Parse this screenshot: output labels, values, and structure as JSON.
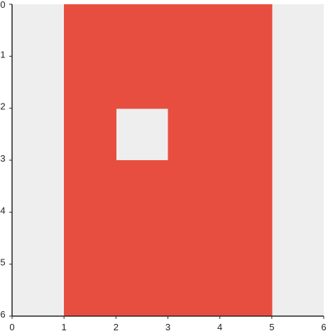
{
  "grid": {
    "cols": 6,
    "rows": 6,
    "x_ticks": [
      "0",
      "1",
      "2",
      "3",
      "4",
      "5",
      "6"
    ],
    "y_ticks": [
      "0",
      "1",
      "2",
      "3",
      "4",
      "5",
      "6"
    ],
    "background_color": "#eeeeee",
    "axis_color": "#222222",
    "cells": [
      {
        "col": 1,
        "row": 0,
        "color": "#e84e3f"
      },
      {
        "col": 2,
        "row": 0,
        "color": "#e84e3f"
      },
      {
        "col": 3,
        "row": 0,
        "color": "#e84e3f"
      },
      {
        "col": 4,
        "row": 0,
        "color": "#e84e3f"
      },
      {
        "col": 1,
        "row": 1,
        "color": "#e84e3f"
      },
      {
        "col": 2,
        "row": 1,
        "color": "#e84e3f"
      },
      {
        "col": 3,
        "row": 1,
        "color": "#e84e3f"
      },
      {
        "col": 4,
        "row": 1,
        "color": "#e84e3f"
      },
      {
        "col": 1,
        "row": 2,
        "color": "#e84e3f"
      },
      {
        "col": 3,
        "row": 2,
        "color": "#e84e3f"
      },
      {
        "col": 4,
        "row": 2,
        "color": "#e84e3f"
      },
      {
        "col": 1,
        "row": 3,
        "color": "#e84e3f"
      },
      {
        "col": 2,
        "row": 3,
        "color": "#e84e3f"
      },
      {
        "col": 3,
        "row": 3,
        "color": "#e84e3f"
      },
      {
        "col": 4,
        "row": 3,
        "color": "#e84e3f"
      },
      {
        "col": 1,
        "row": 4,
        "color": "#e84e3f"
      },
      {
        "col": 2,
        "row": 4,
        "color": "#e84e3f"
      },
      {
        "col": 3,
        "row": 4,
        "color": "#e84e3f"
      },
      {
        "col": 4,
        "row": 4,
        "color": "#e84e3f"
      },
      {
        "col": 1,
        "row": 5,
        "color": "#e84e3f"
      },
      {
        "col": 2,
        "row": 5,
        "color": "#e84e3f"
      },
      {
        "col": 3,
        "row": 5,
        "color": "#e84e3f"
      },
      {
        "col": 4,
        "row": 5,
        "color": "#e84e3f"
      }
    ]
  }
}
